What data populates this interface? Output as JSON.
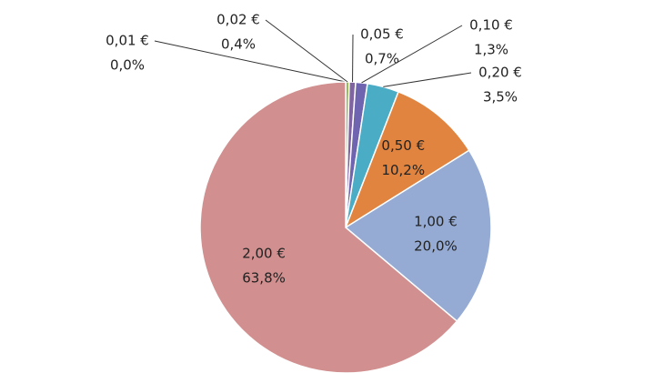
{
  "chart_data": {
    "type": "pie",
    "categories": [
      "0,01 €",
      "0,02 €",
      "0,05 €",
      "0,10 €",
      "0,20 €",
      "0,50 €",
      "1,00 €",
      "2,00 €"
    ],
    "values": [
      0.0,
      0.4,
      0.7,
      1.3,
      3.5,
      10.2,
      20.0,
      63.8
    ],
    "value_labels": [
      "0,0%",
      "0,4%",
      "0,7%",
      "1,3%",
      "3,5%",
      "10,2%",
      "20,0%",
      "63,8%"
    ],
    "colors": [
      "#c0504d",
      "#9bbb59",
      "#8064a2",
      "#6f64b0",
      "#4bacc6",
      "#e0843f",
      "#95abd4",
      "#d18f8f"
    ]
  }
}
